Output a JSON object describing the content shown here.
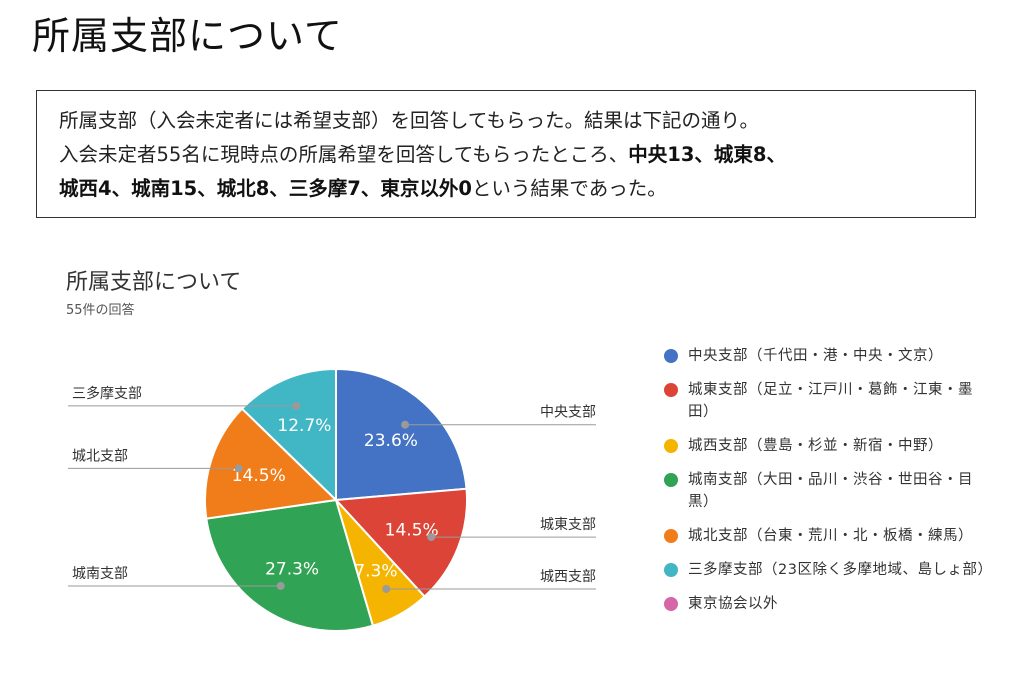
{
  "page_title": "所属支部について",
  "summary": {
    "line1": "所属支部（入会未定者には希望支部）を回答してもらった。結果は下記の通り。",
    "line2_prefix": "入会未定者55名に現時点の所属希望を回答してもらったところ、",
    "line2_bold": "中央13、城東8、",
    "line3_bold": "城西4、城南15、城北8、三多摩7、東京以外0",
    "line3_suffix": "という結果であった。"
  },
  "chart_data": {
    "type": "pie",
    "title": "所属支部について",
    "subtitle": "55件の回答",
    "slices": [
      {
        "label": "中央支部",
        "value": 13,
        "percent_label": "23.6%",
        "color": "#4472c4",
        "legend": "中央支部（千代田・港・中央・文京）"
      },
      {
        "label": "城東支部",
        "value": 8,
        "percent_label": "14.5%",
        "color": "#db4437",
        "legend": "城東支部（足立・江戸川・葛飾・江東・墨田）"
      },
      {
        "label": "城西支部",
        "value": 4,
        "percent_label": "7.3%",
        "color": "#f4b400",
        "legend": "城西支部（豊島・杉並・新宿・中野）"
      },
      {
        "label": "城南支部",
        "value": 15,
        "percent_label": "27.3%",
        "color": "#31a354",
        "legend": "城南支部（大田・品川・渋谷・世田谷・目黒）"
      },
      {
        "label": "城北支部",
        "value": 8,
        "percent_label": "14.5%",
        "color": "#f07d1a",
        "legend": "城北支部（台東・荒川・北・板橋・練馬）"
      },
      {
        "label": "三多摩支部",
        "value": 7,
        "percent_label": "12.7%",
        "color": "#41b6c4",
        "legend": "三多摩支部（23区除く多摩地域、島しょ部）"
      },
      {
        "label": "",
        "value": 0,
        "percent_label": "",
        "color": "#d666a8",
        "legend": "東京協会以外"
      }
    ]
  }
}
